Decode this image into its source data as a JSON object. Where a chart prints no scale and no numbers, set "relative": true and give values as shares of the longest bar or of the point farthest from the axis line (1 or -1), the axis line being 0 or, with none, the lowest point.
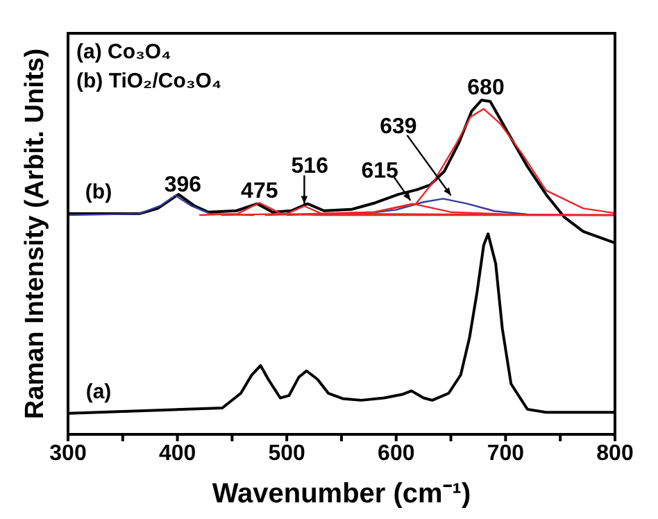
{
  "chart_data": {
    "type": "line",
    "relative": true,
    "xlabel": "Wavenumber (cm⁻¹)",
    "ylabel": "Raman Intensity (Arbit. Units)",
    "xlim": [
      300,
      800
    ],
    "xticks": [
      300,
      {
        "value": 350,
        "label": null
      },
      400,
      {
        "value": 450,
        "label": null
      },
      500,
      {
        "value": 550,
        "label": null
      },
      600,
      {
        "value": 650,
        "label": null
      },
      700,
      {
        "value": 750,
        "label": null
      },
      800
    ],
    "marker": "none",
    "line_style": "solid",
    "legend": false,
    "annotations": [
      "(a) Co₃O₄",
      "(b) TiO₂/Co₃O₄",
      "396",
      "475",
      "516",
      "615",
      "639",
      "680"
    ],
    "series": [
      {
        "name": "(a)",
        "color": "#000000",
        "x": [
          300,
          441,
          458,
          468,
          476,
          483,
          494,
          502,
          511,
          518,
          528,
          538,
          551,
          568,
          589,
          606,
          614,
          625,
          633,
          648,
          659,
          667,
          674,
          680,
          684,
          691,
          697,
          705,
          720,
          737,
          800
        ],
        "values": [
          0.063,
          0.079,
          0.123,
          0.178,
          0.206,
          0.165,
          0.109,
          0.116,
          0.171,
          0.19,
          0.165,
          0.123,
          0.107,
          0.102,
          0.109,
          0.12,
          0.13,
          0.109,
          0.102,
          0.123,
          0.178,
          0.289,
          0.427,
          0.566,
          0.6,
          0.51,
          0.317,
          0.151,
          0.075,
          0.066,
          0.066
        ]
      },
      {
        "name": "(b)",
        "color": "#000000",
        "x": [
          300,
          365,
          382,
          401,
          416,
          428,
          454,
          473,
          487,
          504,
          519,
          534,
          559,
          581,
          602,
          619,
          631,
          644,
          657,
          669,
          678,
          686,
          703,
          720,
          737,
          754,
          771,
          800
        ],
        "values": [
          0.66,
          0.66,
          0.676,
          0.718,
          0.683,
          0.665,
          0.669,
          0.69,
          0.665,
          0.669,
          0.69,
          0.669,
          0.673,
          0.693,
          0.718,
          0.732,
          0.746,
          0.787,
          0.87,
          0.967,
          1.0,
          0.996,
          0.898,
          0.801,
          0.718,
          0.649,
          0.607,
          0.573
        ]
      },
      {
        "color": "#3a3a9a",
        "x": [
          300,
          365,
          385,
          398,
          412,
          430,
          470
        ],
        "values": [
          0.656,
          0.66,
          0.685,
          0.715,
          0.685,
          0.66,
          0.656
        ]
      },
      {
        "color": "#3a3a9a",
        "x": [
          560,
          600,
          625,
          643,
          665,
          690,
          720,
          760
        ],
        "values": [
          0.656,
          0.672,
          0.695,
          0.705,
          0.69,
          0.668,
          0.658,
          0.656
        ]
      },
      {
        "color": "#e8282b",
        "x": [
          420,
          455,
          475,
          495,
          530,
          800
        ],
        "values": [
          0.656,
          0.66,
          0.693,
          0.66,
          0.656,
          0.656
        ]
      },
      {
        "color": "#e8282b",
        "x": [
          440,
          500,
          516,
          532,
          800
        ],
        "values": [
          0.656,
          0.66,
          0.683,
          0.66,
          0.656
        ]
      },
      {
        "color": "#e8282b",
        "x": [
          500,
          580,
          615,
          650,
          720,
          800
        ],
        "values": [
          0.656,
          0.665,
          0.69,
          0.665,
          0.656,
          0.656
        ]
      },
      {
        "color": "#e8282b",
        "x": [
          480,
          580,
          618,
          635,
          655,
          668,
          680,
          695,
          715,
          737,
          771,
          800
        ],
        "values": [
          0.656,
          0.665,
          0.69,
          0.76,
          0.87,
          0.95,
          0.974,
          0.93,
          0.84,
          0.73,
          0.676,
          0.662
        ]
      }
    ]
  }
}
